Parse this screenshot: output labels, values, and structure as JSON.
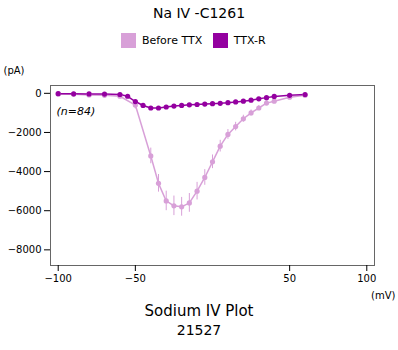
{
  "chart_data": {
    "type": "line",
    "title": "Na IV -C1261",
    "subtitle": "Sodium IV Plot",
    "caption": "21527",
    "x_label": "(mV)",
    "y_label": "(pA)",
    "annotations": [
      {
        "text": "(n=84)"
      }
    ],
    "xlim": [
      -105,
      105
    ],
    "ylim": [
      -8800,
      400
    ],
    "xticks": [
      -100,
      -50,
      50,
      100
    ],
    "yticks": [
      0,
      -2000,
      -4000,
      -6000,
      -8000
    ],
    "grid": false,
    "series": [
      {
        "name": "Before TTX",
        "color": "#D8A0D8",
        "marker": "circle",
        "line_style": "solid",
        "x": [
          -100,
          -90,
          -80,
          -70,
          -60,
          -50,
          -40,
          -35,
          -30,
          -25,
          -20,
          -15,
          -10,
          -5,
          0,
          5,
          10,
          15,
          20,
          25,
          30,
          35,
          40,
          50,
          60
        ],
        "values": [
          -30,
          -50,
          -80,
          -100,
          -150,
          -600,
          -3200,
          -4600,
          -5500,
          -5750,
          -5800,
          -5600,
          -5000,
          -4300,
          -3500,
          -2700,
          -2100,
          -1700,
          -1300,
          -1000,
          -750,
          -500,
          -400,
          -200,
          -100
        ],
        "errors": [
          30,
          40,
          50,
          60,
          80,
          200,
          400,
          450,
          500,
          500,
          480,
          480,
          450,
          400,
          350,
          300,
          250,
          220,
          180,
          150,
          120,
          100,
          80,
          50,
          40
        ]
      },
      {
        "name": "TTX-R",
        "color": "#9400A0",
        "marker": "circle",
        "line_style": "solid",
        "x": [
          -100,
          -90,
          -80,
          -70,
          -60,
          -55,
          -50,
          -45,
          -40,
          -35,
          -30,
          -25,
          -20,
          -15,
          -10,
          -5,
          0,
          5,
          10,
          15,
          20,
          25,
          30,
          35,
          40,
          50,
          60
        ],
        "values": [
          -20,
          -25,
          -30,
          -40,
          -60,
          -150,
          -420,
          -620,
          -750,
          -750,
          -700,
          -650,
          -620,
          -590,
          -570,
          -550,
          -530,
          -510,
          -480,
          -440,
          -400,
          -350,
          -280,
          -220,
          -160,
          -100,
          -60
        ],
        "errors": [
          10,
          12,
          15,
          18,
          25,
          40,
          60,
          70,
          70,
          65,
          60,
          58,
          55,
          52,
          50,
          48,
          45,
          42,
          40,
          38,
          35,
          30,
          25,
          20,
          15,
          10,
          8
        ]
      }
    ]
  }
}
